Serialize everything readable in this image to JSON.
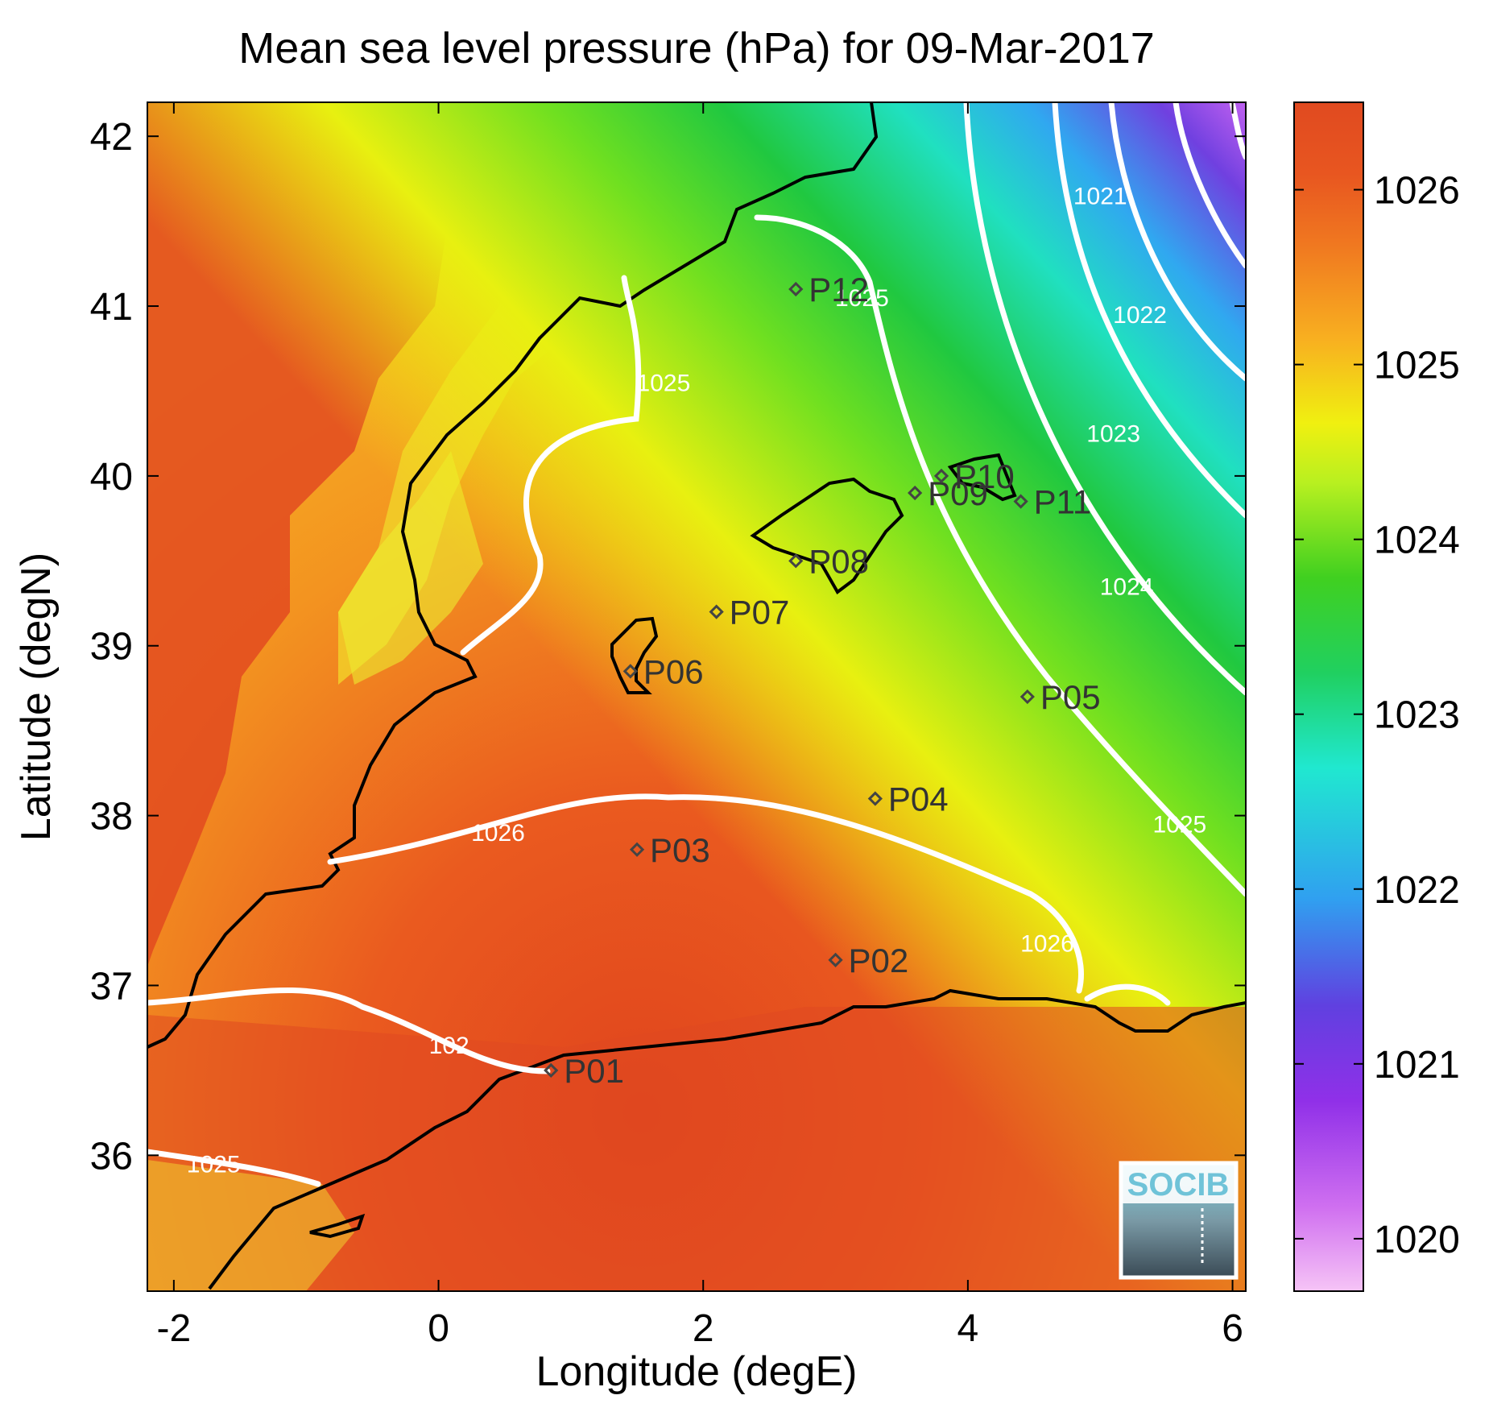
{
  "chart_data": {
    "type": "heatmap",
    "title": "Mean sea level pressure (hPa) for 09-Mar-2017",
    "xlabel": "Longitude (degE)",
    "ylabel": "Latitude (degN)",
    "xlim": [
      -2.2,
      6.1
    ],
    "ylim": [
      35.2,
      42.2
    ],
    "xticks": [
      -2,
      0,
      2,
      4,
      6
    ],
    "yticks": [
      36,
      37,
      38,
      39,
      40,
      41,
      42
    ],
    "colorbar": {
      "range": [
        1019.7,
        1026.5
      ],
      "ticks": [
        1020,
        1021,
        1022,
        1023,
        1024,
        1025,
        1026
      ],
      "colors": [
        "#f0b0f0",
        "#b040f0",
        "#6040e0",
        "#30b0f0",
        "#20e8c0",
        "#20d030",
        "#b0f020",
        "#f0f010",
        "#f8b020",
        "#f07020",
        "#e04a20"
      ]
    },
    "contour_labels": [
      {
        "text": "1021",
        "lon": 5.0,
        "lat": 41.6
      },
      {
        "text": "1022",
        "lon": 5.3,
        "lat": 40.9
      },
      {
        "text": "1023",
        "lon": 5.1,
        "lat": 40.2
      },
      {
        "text": "1024",
        "lon": 5.2,
        "lat": 39.3
      },
      {
        "text": "1025",
        "lon": 5.6,
        "lat": 37.9
      },
      {
        "text": "1025",
        "lon": 3.2,
        "lat": 41.0
      },
      {
        "text": "1025",
        "lon": 1.7,
        "lat": 40.5
      },
      {
        "text": "1026",
        "lon": 0.45,
        "lat": 37.85
      },
      {
        "text": "1026",
        "lon": 4.6,
        "lat": 37.2
      },
      {
        "text": "1025",
        "lon": -1.7,
        "lat": 35.9
      },
      {
        "text": "102",
        "lon": 0.08,
        "lat": 36.6
      }
    ],
    "stations": [
      {
        "name": "P01",
        "lon": 0.85,
        "lat": 36.5
      },
      {
        "name": "P02",
        "lon": 3.0,
        "lat": 37.15
      },
      {
        "name": "P03",
        "lon": 1.5,
        "lat": 37.8
      },
      {
        "name": "P04",
        "lon": 3.3,
        "lat": 38.1
      },
      {
        "name": "P05",
        "lon": 4.45,
        "lat": 38.7
      },
      {
        "name": "P06",
        "lon": 1.45,
        "lat": 38.85
      },
      {
        "name": "P07",
        "lon": 2.1,
        "lat": 39.2
      },
      {
        "name": "P08",
        "lon": 2.7,
        "lat": 39.5
      },
      {
        "name": "P09",
        "lon": 3.6,
        "lat": 39.9
      },
      {
        "name": "P10",
        "lon": 3.8,
        "lat": 40.0
      },
      {
        "name": "P11",
        "lon": 4.4,
        "lat": 39.85
      },
      {
        "name": "P12",
        "lon": 2.7,
        "lat": 41.1
      }
    ]
  },
  "logo": {
    "text": "SOCIB"
  }
}
